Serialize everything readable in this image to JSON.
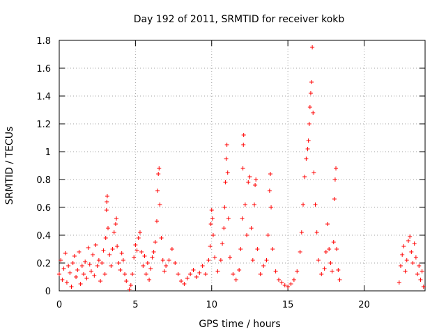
{
  "chart_data": {
    "type": "scatter",
    "title": "Day 192 of 2011, SRMTID for receiver kokb",
    "xlabel": "GPS time / hours",
    "ylabel": "SRMTID / TECUs",
    "xlim": [
      0,
      24
    ],
    "ylim": [
      0,
      1.8
    ],
    "x_ticks": [
      "0",
      "5",
      "10",
      "15",
      "20"
    ],
    "y_ticks": [
      "0",
      "0.2",
      "0.4",
      "0.6",
      "0.8",
      "1",
      "1.2",
      "1.4",
      "1.6",
      "1.8"
    ],
    "grid": true,
    "marker": "plus",
    "series_color": "#ff0000",
    "series": [
      {
        "name": "SRMTID",
        "points": [
          [
            0.0,
            0.12
          ],
          [
            0.1,
            0.22
          ],
          [
            0.2,
            0.08
          ],
          [
            0.3,
            0.16
          ],
          [
            0.4,
            0.27
          ],
          [
            0.5,
            0.06
          ],
          [
            0.6,
            0.18
          ],
          [
            0.7,
            0.13
          ],
          [
            0.8,
            0.03
          ],
          [
            0.9,
            0.2
          ],
          [
            1.0,
            0.25
          ],
          [
            1.1,
            0.1
          ],
          [
            1.2,
            0.15
          ],
          [
            1.3,
            0.28
          ],
          [
            1.4,
            0.05
          ],
          [
            1.5,
            0.18
          ],
          [
            1.6,
            0.12
          ],
          [
            1.7,
            0.21
          ],
          [
            1.8,
            0.09
          ],
          [
            1.9,
            0.31
          ],
          [
            2.0,
            0.19
          ],
          [
            2.1,
            0.14
          ],
          [
            2.2,
            0.26
          ],
          [
            2.3,
            0.11
          ],
          [
            2.4,
            0.33
          ],
          [
            2.5,
            0.18
          ],
          [
            2.6,
            0.22
          ],
          [
            2.7,
            0.07
          ],
          [
            2.8,
            0.2
          ],
          [
            2.9,
            0.29
          ],
          [
            3.0,
            0.12
          ],
          [
            3.05,
            0.38
          ],
          [
            3.1,
            0.58
          ],
          [
            3.12,
            0.64
          ],
          [
            3.15,
            0.68
          ],
          [
            3.2,
            0.45
          ],
          [
            3.3,
            0.26
          ],
          [
            3.4,
            0.18
          ],
          [
            3.5,
            0.3
          ],
          [
            3.6,
            0.42
          ],
          [
            3.7,
            0.48
          ],
          [
            3.75,
            0.52
          ],
          [
            3.8,
            0.32
          ],
          [
            3.9,
            0.2
          ],
          [
            4.0,
            0.15
          ],
          [
            4.1,
            0.27
          ],
          [
            4.2,
            0.22
          ],
          [
            4.3,
            0.12
          ],
          [
            4.4,
            0.07
          ],
          [
            4.6,
            0.01
          ],
          [
            4.7,
            0.04
          ],
          [
            4.8,
            0.12
          ],
          [
            4.9,
            0.24
          ],
          [
            5.0,
            0.33
          ],
          [
            5.1,
            0.29
          ],
          [
            5.2,
            0.38
          ],
          [
            5.3,
            0.42
          ],
          [
            5.4,
            0.28
          ],
          [
            5.5,
            0.18
          ],
          [
            5.6,
            0.25
          ],
          [
            5.7,
            0.12
          ],
          [
            5.8,
            0.2
          ],
          [
            5.9,
            0.08
          ],
          [
            6.0,
            0.16
          ],
          [
            6.1,
            0.24
          ],
          [
            6.2,
            0.28
          ],
          [
            6.3,
            0.35
          ],
          [
            6.4,
            0.5
          ],
          [
            6.45,
            0.72
          ],
          [
            6.5,
            0.84
          ],
          [
            6.55,
            0.88
          ],
          [
            6.6,
            0.62
          ],
          [
            6.7,
            0.38
          ],
          [
            6.8,
            0.22
          ],
          [
            6.9,
            0.14
          ],
          [
            7.0,
            0.18
          ],
          [
            7.2,
            0.22
          ],
          [
            7.4,
            0.3
          ],
          [
            7.6,
            0.2
          ],
          [
            7.8,
            0.12
          ],
          [
            8.0,
            0.07
          ],
          [
            8.2,
            0.05
          ],
          [
            8.4,
            0.09
          ],
          [
            8.6,
            0.12
          ],
          [
            8.8,
            0.15
          ],
          [
            9.0,
            0.1
          ],
          [
            9.2,
            0.13
          ],
          [
            9.4,
            0.18
          ],
          [
            9.6,
            0.12
          ],
          [
            9.8,
            0.22
          ],
          [
            9.9,
            0.32
          ],
          [
            9.95,
            0.48
          ],
          [
            10.0,
            0.58
          ],
          [
            10.05,
            0.52
          ],
          [
            10.1,
            0.4
          ],
          [
            10.2,
            0.24
          ],
          [
            10.4,
            0.14
          ],
          [
            10.6,
            0.22
          ],
          [
            10.7,
            0.34
          ],
          [
            10.8,
            0.45
          ],
          [
            10.85,
            0.6
          ],
          [
            10.9,
            0.78
          ],
          [
            10.95,
            0.95
          ],
          [
            11.0,
            1.05
          ],
          [
            11.05,
            0.85
          ],
          [
            11.1,
            0.52
          ],
          [
            11.2,
            0.24
          ],
          [
            11.4,
            0.12
          ],
          [
            11.6,
            0.08
          ],
          [
            11.8,
            0.15
          ],
          [
            11.9,
            0.3
          ],
          [
            12.0,
            0.52
          ],
          [
            12.05,
            0.88
          ],
          [
            12.08,
            1.05
          ],
          [
            12.1,
            1.12
          ],
          [
            12.2,
            0.62
          ],
          [
            12.3,
            0.4
          ],
          [
            12.4,
            0.78
          ],
          [
            12.5,
            0.82
          ],
          [
            12.6,
            0.45
          ],
          [
            12.7,
            0.22
          ],
          [
            12.8,
            0.62
          ],
          [
            12.85,
            0.76
          ],
          [
            12.9,
            0.8
          ],
          [
            13.0,
            0.3
          ],
          [
            13.2,
            0.12
          ],
          [
            13.4,
            0.18
          ],
          [
            13.6,
            0.22
          ],
          [
            13.7,
            0.4
          ],
          [
            13.8,
            0.72
          ],
          [
            13.85,
            0.84
          ],
          [
            13.9,
            0.6
          ],
          [
            14.0,
            0.3
          ],
          [
            14.2,
            0.14
          ],
          [
            14.4,
            0.08
          ],
          [
            14.6,
            0.06
          ],
          [
            14.8,
            0.04
          ],
          [
            15.0,
            0.03
          ],
          [
            15.2,
            0.05
          ],
          [
            15.4,
            0.08
          ],
          [
            15.6,
            0.14
          ],
          [
            15.8,
            0.28
          ],
          [
            15.9,
            0.42
          ],
          [
            16.0,
            0.62
          ],
          [
            16.1,
            0.82
          ],
          [
            16.2,
            0.95
          ],
          [
            16.3,
            1.02
          ],
          [
            16.35,
            1.08
          ],
          [
            16.4,
            1.2
          ],
          [
            16.45,
            1.32
          ],
          [
            16.5,
            1.42
          ],
          [
            16.55,
            1.5
          ],
          [
            16.6,
            1.75
          ],
          [
            16.65,
            1.28
          ],
          [
            16.7,
            0.85
          ],
          [
            16.8,
            0.62
          ],
          [
            16.9,
            0.42
          ],
          [
            17.0,
            0.22
          ],
          [
            17.2,
            0.12
          ],
          [
            17.4,
            0.16
          ],
          [
            17.5,
            0.28
          ],
          [
            17.6,
            0.48
          ],
          [
            17.7,
            0.3
          ],
          [
            17.8,
            0.2
          ],
          [
            17.9,
            0.14
          ],
          [
            18.0,
            0.35
          ],
          [
            18.05,
            0.66
          ],
          [
            18.1,
            0.8
          ],
          [
            18.15,
            0.88
          ],
          [
            18.2,
            0.3
          ],
          [
            18.3,
            0.15
          ],
          [
            18.4,
            0.08
          ],
          [
            22.3,
            0.06
          ],
          [
            22.4,
            0.18
          ],
          [
            22.5,
            0.26
          ],
          [
            22.6,
            0.32
          ],
          [
            22.7,
            0.14
          ],
          [
            22.8,
            0.22
          ],
          [
            22.9,
            0.36
          ],
          [
            23.0,
            0.39
          ],
          [
            23.1,
            0.28
          ],
          [
            23.2,
            0.2
          ],
          [
            23.3,
            0.34
          ],
          [
            23.4,
            0.24
          ],
          [
            23.5,
            0.12
          ],
          [
            23.6,
            0.18
          ],
          [
            23.7,
            0.08
          ],
          [
            23.8,
            0.14
          ],
          [
            23.9,
            0.03
          ]
        ]
      }
    ]
  }
}
